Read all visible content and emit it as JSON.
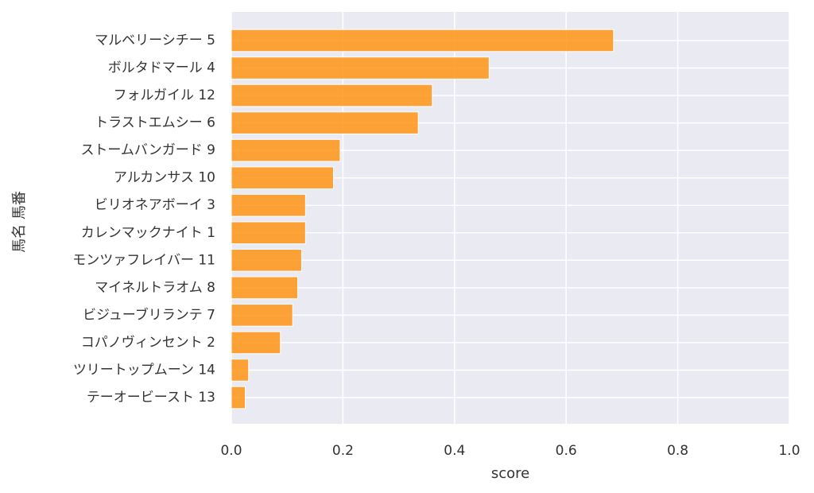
{
  "chart_data": {
    "type": "bar",
    "orientation": "horizontal",
    "xlabel": "score",
    "ylabel": "馬名 馬番",
    "xlim": [
      0.0,
      1.0
    ],
    "xticks": [
      "0.0",
      "0.2",
      "0.4",
      "0.6",
      "0.8",
      "1.0"
    ],
    "grid": true,
    "bar_color": "#FF9415",
    "background_color": "#EAEAF2",
    "categories": [
      "マルベリーシチー 5",
      "ボルタドマール 4",
      "フォルガイル 12",
      "トラストエムシー 6",
      "ストームバンガード 9",
      "アルカンサス 10",
      "ビリオネアボーイ 3",
      "カレンマックナイト 1",
      "モンツァフレイバー 11",
      "マイネルトラオム 8",
      "ビジューブリランテ 7",
      "コパノヴィンセント 2",
      "ツリートップムーン 14",
      "テーオービースト 13"
    ],
    "values": [
      0.685,
      0.462,
      0.36,
      0.335,
      0.195,
      0.183,
      0.133,
      0.133,
      0.126,
      0.119,
      0.11,
      0.088,
      0.031,
      0.025
    ]
  }
}
